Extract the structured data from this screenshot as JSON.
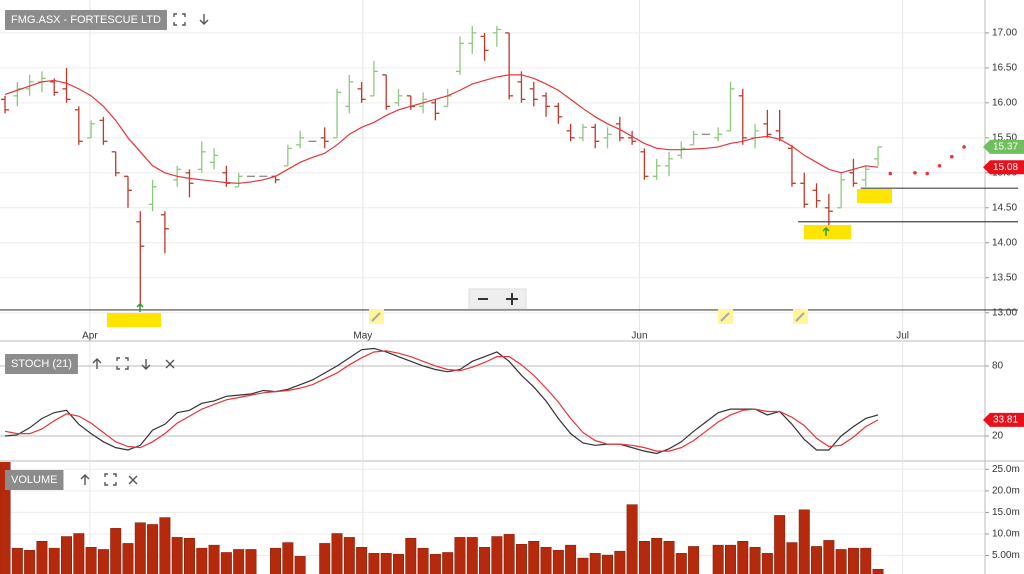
{
  "chart_data": [
    {
      "type": "ohlc",
      "title": "FMG.ASX - FORTESCUE LTD",
      "xlim": [
        -0.41,
        79.7
      ],
      "xticks": [
        {
          "value": 6.9,
          "label": "Apr"
        },
        {
          "value": 29.1,
          "label": "May"
        },
        {
          "value": 51.6,
          "label": "Jun"
        },
        {
          "value": 73.0,
          "label": "Jul"
        }
      ],
      "ylim": [
        12.61,
        17.47
      ],
      "yticks": [
        {
          "value": 13,
          "label": "13.00"
        },
        {
          "value": 13.5,
          "label": "13.50"
        },
        {
          "value": 14,
          "label": "14.00"
        },
        {
          "value": 14.5,
          "label": "14.50"
        },
        {
          "value": 15,
          "label": "15.00"
        },
        {
          "value": 15.5,
          "label": "15.50"
        },
        {
          "value": 16,
          "label": "16.00"
        },
        {
          "value": 16.5,
          "label": "16.50"
        },
        {
          "value": 17,
          "label": "17.00"
        }
      ],
      "grid": true,
      "up_color": "#8cc97e",
      "down_color": "#c0392b",
      "flat_color": "#888888",
      "open": [
        16.05,
        16.1,
        16.2,
        16.3,
        16.3,
        16.2,
        15.9,
        15.5,
        15.75,
        15.3,
        14.95,
        14.3,
        14.55,
        14.4,
        14.9,
        15.0,
        15.05,
        15.15,
        15.0,
        14.8,
        14.95,
        14.95,
        14.95,
        15.1,
        15.4,
        15.45,
        15.5,
        15.5,
        15.95,
        16.2,
        16.1,
        16.4,
        16.0,
        16.1,
        15.95,
        16.0,
        15.95,
        16.45,
        16.85,
        16.95,
        17.0,
        17.0,
        16.3,
        16.2,
        16.1,
        15.95,
        15.6,
        15.5,
        15.65,
        15.5,
        15.7,
        15.5,
        15.3,
        14.95,
        15.1,
        15.25,
        15.4,
        15.55,
        15.5,
        15.6,
        16.1,
        15.5,
        15.7,
        15.6,
        15.35,
        14.85,
        14.75,
        14.5,
        14.5,
        15.0,
        14.9,
        15.2
      ],
      "high": [
        16.1,
        16.3,
        16.4,
        16.45,
        16.35,
        16.5,
        15.95,
        15.75,
        15.8,
        15.3,
        14.95,
        14.45,
        14.9,
        14.45,
        15.1,
        15.05,
        15.45,
        15.35,
        15.1,
        15.0,
        14.95,
        14.95,
        14.95,
        15.4,
        15.6,
        15.45,
        15.65,
        16.2,
        16.4,
        16.3,
        16.6,
        16.4,
        16.2,
        16.1,
        16.15,
        16.05,
        16.2,
        16.95,
        17.1,
        17.0,
        17.1,
        17.0,
        16.45,
        16.3,
        16.15,
        16.0,
        15.7,
        15.7,
        15.7,
        15.65,
        15.8,
        15.6,
        15.35,
        15.2,
        15.3,
        15.45,
        15.6,
        15.55,
        15.65,
        16.3,
        16.2,
        15.7,
        15.9,
        15.9,
        15.4,
        15.0,
        14.85,
        14.7,
        15.0,
        15.2,
        15.1,
        15.37
      ],
      "low": [
        15.85,
        15.95,
        16.1,
        16.15,
        16.1,
        16.0,
        15.4,
        15.5,
        15.4,
        14.95,
        14.5,
        13.1,
        14.45,
        13.85,
        14.8,
        14.65,
        15.0,
        15.05,
        14.8,
        14.8,
        14.95,
        14.95,
        14.85,
        15.1,
        15.35,
        15.45,
        15.35,
        15.5,
        15.85,
        16.0,
        16.1,
        15.9,
        15.95,
        15.9,
        15.85,
        15.75,
        15.95,
        16.4,
        16.7,
        16.6,
        16.8,
        16.05,
        16.0,
        15.95,
        15.8,
        15.7,
        15.45,
        15.45,
        15.35,
        15.35,
        15.45,
        15.4,
        14.9,
        14.9,
        14.95,
        15.2,
        15.4,
        15.55,
        15.45,
        15.6,
        15.4,
        15.35,
        15.5,
        15.45,
        14.8,
        14.5,
        14.5,
        14.25,
        14.5,
        14.8,
        14.8,
        15.1
      ],
      "close": [
        15.9,
        16.2,
        16.3,
        16.35,
        16.15,
        16.05,
        15.45,
        15.7,
        15.45,
        15.0,
        14.75,
        13.95,
        14.8,
        14.2,
        15.05,
        14.85,
        15.3,
        15.25,
        14.85,
        14.95,
        14.95,
        14.95,
        14.9,
        15.35,
        15.5,
        15.45,
        15.45,
        16.15,
        16.3,
        16.05,
        16.45,
        15.95,
        16.1,
        15.95,
        16.05,
        15.85,
        16.1,
        16.85,
        17.0,
        16.75,
        17.05,
        16.1,
        16.05,
        16.05,
        15.95,
        15.8,
        15.5,
        15.65,
        15.45,
        15.55,
        15.5,
        15.45,
        14.95,
        15.1,
        15.2,
        15.35,
        15.55,
        15.55,
        15.55,
        16.2,
        15.5,
        15.6,
        15.55,
        15.5,
        14.85,
        14.55,
        14.6,
        14.45,
        14.9,
        14.85,
        15.05,
        15.37
      ],
      "ma": {
        "color": "#e8343a",
        "values": [
          16.12,
          16.18,
          16.24,
          16.3,
          16.32,
          16.28,
          16.2,
          16.1,
          15.95,
          15.75,
          15.5,
          15.3,
          15.1,
          15.0,
          14.95,
          14.92,
          14.9,
          14.88,
          14.86,
          14.85,
          14.87,
          14.9,
          14.95,
          15.05,
          15.15,
          15.22,
          15.28,
          15.4,
          15.55,
          15.65,
          15.72,
          15.82,
          15.9,
          15.95,
          16.0,
          16.05,
          16.1,
          16.18,
          16.27,
          16.32,
          16.37,
          16.4,
          16.4,
          16.35,
          16.27,
          16.18,
          16.05,
          15.92,
          15.8,
          15.7,
          15.62,
          15.52,
          15.42,
          15.35,
          15.33,
          15.33,
          15.34,
          15.35,
          15.37,
          15.42,
          15.45,
          15.5,
          15.52,
          15.48,
          15.38,
          15.25,
          15.15,
          15.05,
          15.0,
          15.05,
          15.1,
          15.08
        ]
      },
      "projection": {
        "color": "#e8343a",
        "x": [
          72,
          74,
          75,
          76,
          77,
          78
        ],
        "values": [
          14.99,
          15.0,
          14.99,
          15.1,
          15.23,
          15.37
        ]
      },
      "levels": [
        {
          "value": 13.04,
          "from": -0.41
        },
        {
          "value": 14.3,
          "from": 64.5
        },
        {
          "value": 14.78,
          "from": 69.6
        }
      ]
    },
    {
      "type": "line",
      "title": "STOCH (21)",
      "ylim": [
        -0.6,
        99.7
      ],
      "yticks": [
        20,
        80
      ],
      "grid": true,
      "series": [
        {
          "color": "#333333",
          "values": [
            20,
            21,
            27,
            35,
            40,
            42,
            30,
            22,
            15,
            10,
            8,
            12,
            25,
            30,
            40,
            42,
            48,
            50,
            54,
            55,
            56,
            59,
            58,
            60,
            64,
            68,
            74,
            80,
            87,
            94,
            95,
            92,
            88,
            84,
            80,
            77,
            75,
            77,
            84,
            88,
            92,
            84,
            72,
            62,
            50,
            35,
            22,
            14,
            12,
            13,
            13,
            10,
            7,
            5,
            9,
            15,
            24,
            32,
            40,
            43,
            43,
            43,
            38,
            41,
            30,
            17,
            8,
            8,
            20,
            28,
            35,
            38
          ]
        },
        {
          "color": "#e8343a",
          "values": [
            24,
            22,
            22,
            26,
            33,
            39,
            37,
            31,
            23,
            15,
            11,
            10,
            15,
            22,
            31,
            37,
            43,
            47,
            51,
            53,
            55,
            57,
            58,
            59,
            61,
            64,
            69,
            74,
            81,
            87,
            92,
            93,
            91,
            88,
            84,
            80,
            77,
            76,
            79,
            83,
            88,
            88,
            81,
            72,
            61,
            49,
            35,
            23,
            16,
            13,
            13,
            12,
            10,
            7,
            7,
            10,
            16,
            24,
            32,
            38,
            42,
            43,
            41,
            41,
            36,
            29,
            18,
            11,
            12,
            19,
            28,
            33.81
          ]
        }
      ]
    },
    {
      "type": "bar",
      "title": "VOLUME",
      "color": "#b5290c",
      "ylim": [
        0.7,
        26.7
      ],
      "yticks": [
        {
          "value": 5,
          "label": "5.00m"
        },
        {
          "value": 10,
          "label": "10.0m"
        },
        {
          "value": 15,
          "label": "15.0m"
        },
        {
          "value": 20,
          "label": "20.0m"
        },
        {
          "value": 25,
          "label": "25.0m"
        }
      ],
      "grid": true,
      "values": [
        28,
        6.7,
        6.2,
        8.3,
        6.7,
        9.4,
        10.1,
        6.9,
        6.4,
        11.3,
        7.8,
        12.6,
        12.2,
        13.8,
        9.2,
        9.0,
        6.7,
        7.4,
        5.7,
        6.4,
        6.4,
        null,
        6.7,
        8.0,
        4.8,
        null,
        7.8,
        10.1,
        9.2,
        6.9,
        5.5,
        5.5,
        5.3,
        9.0,
        6.7,
        5.3,
        5.7,
        9.2,
        9.2,
        6.9,
        9.4,
        9.9,
        7.6,
        8.3,
        6.9,
        6.2,
        7.4,
        4.4,
        5.5,
        5.1,
        6.0,
        16.8,
        8.3,
        9.0,
        8.3,
        5.5,
        7.1,
        null,
        7.4,
        7.4,
        8.3,
        6.9,
        5.5,
        14.3,
        8.0,
        15.6,
        7.1,
        8.5,
        6.4,
        6.7,
        6.7,
        1.8
      ]
    }
  ]
}
